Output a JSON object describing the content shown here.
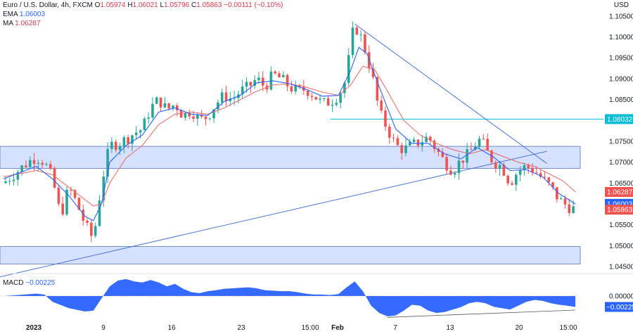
{
  "header": {
    "symbol": "Euro / U.S. Dollar, 4h, FXCM",
    "o_label": "O",
    "o_value": "1.05974",
    "h_label": "H",
    "h_value": "1.06021",
    "l_label": "L",
    "l_value": "1.05796",
    "c_label": "C",
    "c_value": "1.05863",
    "change": "−0.00111 (−0.10%)"
  },
  "indicators": {
    "ema_label": "EMA",
    "ema_value": "1.06003",
    "ma_label": "MA",
    "ma_value": "1.06287",
    "macd_label": "MACD",
    "macd_value": "−0.00225"
  },
  "currency": "USD",
  "colors": {
    "up": "#26a69a",
    "down": "#ef5350",
    "ema": "#2962ff",
    "ma": "#e57373",
    "zone": "#d6e0ff",
    "macd": "#2962ff",
    "level": "#00bcd4",
    "trendline": "#4a74d6"
  },
  "price_axis": {
    "ticks": [
      "1.10500",
      "1.10000",
      "1.09500",
      "1.09000",
      "1.08500",
      "1.08000",
      "1.07500",
      "1.07000",
      "1.06500",
      "1.06000",
      "1.05500",
      "1.05000",
      "1.04500"
    ],
    "badges": [
      {
        "label": "1.08032",
        "color": "#00bcd4",
        "value": 1.08032
      },
      {
        "label": "1.06287",
        "color": "#ef5350",
        "value": 1.06287
      },
      {
        "label": "1.06003",
        "color": "#2962ff",
        "value": 1.06003
      },
      {
        "label": "1.05863",
        "color": "#ef5350",
        "value": 1.05863
      }
    ]
  },
  "macd_axis": {
    "ticks": [
      "0.00000"
    ],
    "badge": {
      "label": "−0.00225",
      "value": -0.00225
    }
  },
  "time_axis": [
    "2023",
    "9",
    "16",
    "23",
    "15:00",
    "Feb",
    "7",
    "13",
    "20",
    "15:00"
  ],
  "chart_data": {
    "type": "candlestick",
    "ylim": [
      1.0435,
      1.1075
    ],
    "x_count": 140,
    "zones": [
      {
        "from": 1.0685,
        "to": 1.0738
      },
      {
        "from": 1.0456,
        "to": 1.0498
      }
    ],
    "level": {
      "value": 1.08032,
      "from_index": 80
    },
    "trendlines": [
      {
        "x1": -1,
        "y1": 1.0425,
        "x2": 133,
        "y2": 1.0726
      },
      {
        "x1": 86,
        "y1": 1.1031,
        "x2": 133,
        "y2": 1.0697
      }
    ],
    "series_path": [
      [
        0,
        1.065
      ],
      [
        6,
        1.07
      ],
      [
        8,
        1.0713
      ],
      [
        10,
        1.07
      ],
      [
        12,
        1.066
      ],
      [
        14,
        1.057
      ],
      [
        16,
        1.064
      ],
      [
        18,
        1.06
      ],
      [
        20,
        1.055
      ],
      [
        22,
        1.0515
      ],
      [
        24,
        1.065
      ],
      [
        26,
        1.074
      ],
      [
        28,
        1.0745
      ],
      [
        30,
        1.0755
      ],
      [
        32,
        1.077
      ],
      [
        34,
        1.078
      ],
      [
        36,
        1.083
      ],
      [
        38,
        1.085
      ],
      [
        40,
        1.0825
      ],
      [
        42,
        1.084
      ],
      [
        44,
        1.081
      ],
      [
        46,
        1.0825
      ],
      [
        48,
        1.08
      ],
      [
        50,
        1.081
      ],
      [
        52,
        1.084
      ],
      [
        54,
        1.086
      ],
      [
        56,
        1.085
      ],
      [
        58,
        1.087
      ],
      [
        60,
        1.088
      ],
      [
        62,
        1.09
      ],
      [
        64,
        1.088
      ],
      [
        66,
        1.091
      ],
      [
        68,
        1.09
      ],
      [
        70,
        1.088
      ],
      [
        72,
        1.087
      ],
      [
        74,
        1.0875
      ],
      [
        76,
        1.086
      ],
      [
        78,
        1.084
      ],
      [
        80,
        1.0845
      ],
      [
        82,
        1.086
      ],
      [
        84,
        1.09
      ],
      [
        85,
        1.099
      ],
      [
        86,
        1.1028
      ],
      [
        88,
        1.099
      ],
      [
        89,
        1.095
      ],
      [
        90,
        1.092
      ],
      [
        91,
        1.087
      ],
      [
        92,
        1.082
      ],
      [
        94,
        1.078
      ],
      [
        96,
        1.074
      ],
      [
        98,
        1.073
      ],
      [
        100,
        1.074
      ],
      [
        102,
        1.075
      ],
      [
        104,
        1.076
      ],
      [
        106,
        1.073
      ],
      [
        108,
        1.07
      ],
      [
        110,
        1.068
      ],
      [
        112,
        1.0705
      ],
      [
        114,
        1.072
      ],
      [
        116,
        1.075
      ],
      [
        117,
        1.0755
      ],
      [
        118,
        1.073
      ],
      [
        120,
        1.07
      ],
      [
        122,
        1.069
      ],
      [
        124,
        1.065
      ],
      [
        126,
        1.068
      ],
      [
        128,
        1.069
      ],
      [
        130,
        1.068
      ],
      [
        132,
        1.066
      ],
      [
        134,
        1.064
      ],
      [
        136,
        1.061
      ],
      [
        138,
        1.0595
      ],
      [
        140,
        1.05863
      ]
    ],
    "ema": [
      [
        0,
        1.066
      ],
      [
        8,
        1.069
      ],
      [
        12,
        1.066
      ],
      [
        16,
        1.062
      ],
      [
        20,
        1.057
      ],
      [
        22,
        1.056
      ],
      [
        24,
        1.06
      ],
      [
        26,
        1.07
      ],
      [
        30,
        1.074
      ],
      [
        34,
        1.0765
      ],
      [
        38,
        1.082
      ],
      [
        42,
        1.083
      ],
      [
        46,
        1.0815
      ],
      [
        50,
        1.0812
      ],
      [
        54,
        1.0845
      ],
      [
        58,
        1.086
      ],
      [
        62,
        1.089
      ],
      [
        66,
        1.0895
      ],
      [
        70,
        1.0888
      ],
      [
        74,
        1.0875
      ],
      [
        78,
        1.0858
      ],
      [
        82,
        1.086
      ],
      [
        85,
        1.092
      ],
      [
        87,
        1.0975
      ],
      [
        89,
        1.096
      ],
      [
        92,
        1.088
      ],
      [
        96,
        1.078
      ],
      [
        100,
        1.0745
      ],
      [
        104,
        1.0745
      ],
      [
        108,
        1.072
      ],
      [
        112,
        1.0708
      ],
      [
        116,
        1.0735
      ],
      [
        120,
        1.0712
      ],
      [
        124,
        1.068
      ],
      [
        128,
        1.0682
      ],
      [
        132,
        1.0665
      ],
      [
        136,
        1.0625
      ],
      [
        140,
        1.06
      ]
    ],
    "ma": [
      [
        0,
        1.0665
      ],
      [
        8,
        1.068
      ],
      [
        12,
        1.067
      ],
      [
        16,
        1.064
      ],
      [
        20,
        1.061
      ],
      [
        22,
        1.0595
      ],
      [
        24,
        1.06
      ],
      [
        26,
        1.065
      ],
      [
        30,
        1.071
      ],
      [
        34,
        1.074
      ],
      [
        38,
        1.079
      ],
      [
        42,
        1.0815
      ],
      [
        46,
        1.082
      ],
      [
        50,
        1.0815
      ],
      [
        54,
        1.083
      ],
      [
        58,
        1.085
      ],
      [
        62,
        1.087
      ],
      [
        66,
        1.0885
      ],
      [
        70,
        1.0888
      ],
      [
        74,
        1.088
      ],
      [
        78,
        1.0868
      ],
      [
        82,
        1.086
      ],
      [
        85,
        1.0885
      ],
      [
        88,
        1.093
      ],
      [
        91,
        1.092
      ],
      [
        94,
        1.087
      ],
      [
        98,
        1.08
      ],
      [
        102,
        1.0765
      ],
      [
        106,
        1.0745
      ],
      [
        110,
        1.073
      ],
      [
        114,
        1.072
      ],
      [
        118,
        1.073
      ],
      [
        122,
        1.0715
      ],
      [
        126,
        1.07
      ],
      [
        130,
        1.069
      ],
      [
        134,
        1.067
      ],
      [
        137,
        1.0655
      ],
      [
        140,
        1.0629
      ]
    ],
    "macd": {
      "ylim": [
        -0.0045,
        0.0045
      ],
      "values": [
        [
          0,
          0.0
        ],
        [
          8,
          0.0005
        ],
        [
          10,
          0.0003
        ],
        [
          12,
          -0.0012
        ],
        [
          16,
          -0.0025
        ],
        [
          20,
          -0.0032
        ],
        [
          22,
          -0.003
        ],
        [
          24,
          -0.0005
        ],
        [
          26,
          0.002
        ],
        [
          28,
          0.0032
        ],
        [
          30,
          0.0035
        ],
        [
          32,
          0.003
        ],
        [
          34,
          0.0028
        ],
        [
          36,
          0.0033
        ],
        [
          38,
          0.0028
        ],
        [
          40,
          0.002
        ],
        [
          42,
          0.0025
        ],
        [
          44,
          0.0015
        ],
        [
          46,
          0.0008
        ],
        [
          48,
          0.0006
        ],
        [
          50,
          0.001
        ],
        [
          52,
          0.0012
        ],
        [
          54,
          0.0015
        ],
        [
          56,
          0.0016
        ],
        [
          58,
          0.0017
        ],
        [
          60,
          0.0018
        ],
        [
          62,
          0.0016
        ],
        [
          64,
          0.0012
        ],
        [
          66,
          0.0011
        ],
        [
          68,
          0.001
        ],
        [
          70,
          0.001
        ],
        [
          72,
          0.0008
        ],
        [
          74,
          0.0005
        ],
        [
          76,
          0.0003
        ],
        [
          78,
          0.0003
        ],
        [
          80,
          0.0002
        ],
        [
          82,
          0.0004
        ],
        [
          84,
          0.0018
        ],
        [
          86,
          0.003
        ],
        [
          88,
          0.001
        ],
        [
          90,
          -0.002
        ],
        [
          92,
          -0.0035
        ],
        [
          94,
          -0.0042
        ],
        [
          96,
          -0.004
        ],
        [
          98,
          -0.003
        ],
        [
          100,
          -0.0018
        ],
        [
          102,
          -0.002
        ],
        [
          104,
          -0.003
        ],
        [
          106,
          -0.0035
        ],
        [
          108,
          -0.0033
        ],
        [
          110,
          -0.0028
        ],
        [
          112,
          -0.0023
        ],
        [
          114,
          -0.0015
        ],
        [
          116,
          -0.0012
        ],
        [
          118,
          -0.0015
        ],
        [
          120,
          -0.0022
        ],
        [
          122,
          -0.0025
        ],
        [
          124,
          -0.0028
        ],
        [
          126,
          -0.002
        ],
        [
          128,
          -0.0012
        ],
        [
          130,
          -0.0008
        ],
        [
          132,
          -0.001
        ],
        [
          134,
          -0.0015
        ],
        [
          136,
          -0.0018
        ],
        [
          138,
          -0.002
        ],
        [
          140,
          -0.00225
        ]
      ],
      "trendline": {
        "x1": 94,
        "y1": -0.0044,
        "x2": 140,
        "y2": -0.0029
      }
    }
  }
}
